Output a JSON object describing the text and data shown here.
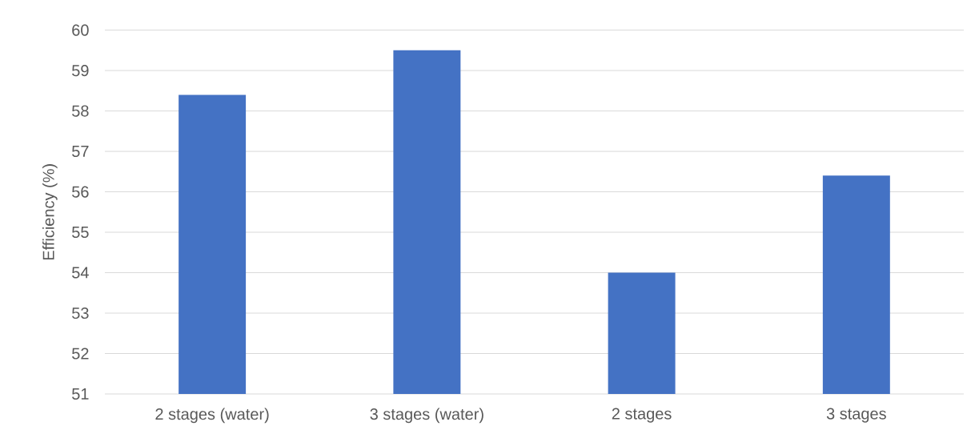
{
  "chart_data": {
    "type": "bar",
    "ylabel": "Efficiency (%)",
    "categories": [
      "2 stages (water)",
      "3 stages (water)",
      "2 stages",
      "3 stages"
    ],
    "values": [
      58.4,
      59.5,
      54.0,
      56.4
    ],
    "color": "#4472c4",
    "ylim": [
      51,
      60
    ],
    "yticks": [
      51,
      52,
      53,
      54,
      55,
      56,
      57,
      58,
      59,
      60
    ],
    "grid": "y"
  }
}
